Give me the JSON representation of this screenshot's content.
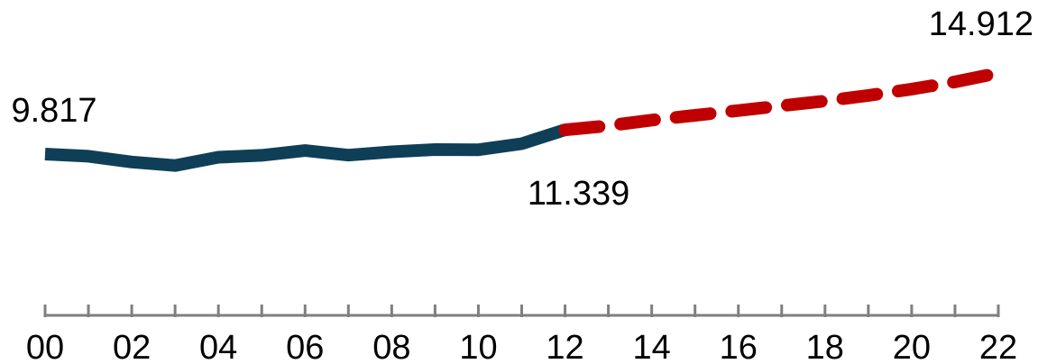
{
  "chart_data": {
    "type": "line",
    "title": "",
    "xlabel": "",
    "ylabel": "",
    "x": [
      0,
      1,
      2,
      3,
      4,
      5,
      6,
      7,
      8,
      9,
      10,
      11,
      12,
      13,
      14,
      15,
      16,
      17,
      18,
      19,
      20,
      21,
      22
    ],
    "xlim": [
      0,
      22
    ],
    "ylim": [
      6,
      16
    ],
    "x_tick_labels": [
      "00",
      "02",
      "04",
      "06",
      "08",
      "10",
      "12",
      "14",
      "16",
      "18",
      "20",
      "22"
    ],
    "grid": false,
    "legend": "none",
    "series": [
      {
        "style": "solid",
        "color": "#0f3f57",
        "x": [
          0,
          1,
          2,
          3,
          4,
          5,
          6,
          7,
          8,
          9,
          10,
          11,
          12
        ],
        "values": [
          9.817,
          9.68,
          9.32,
          9.1,
          9.62,
          9.74,
          10.04,
          9.75,
          9.96,
          10.1,
          10.09,
          10.47,
          11.339
        ]
      },
      {
        "style": "dashed",
        "color": "#c00000",
        "x": [
          12,
          13,
          14,
          15,
          16,
          17,
          18,
          19,
          20,
          21,
          22
        ],
        "values": [
          11.339,
          11.6,
          11.95,
          12.25,
          12.55,
          12.85,
          13.15,
          13.5,
          13.9,
          14.35,
          14.912
        ]
      }
    ],
    "data_labels": [
      {
        "text": "9.817",
        "x": 0,
        "y": 9.817
      },
      {
        "text": "11.339",
        "x": 12,
        "y": 11.339
      },
      {
        "text": "14.912",
        "x": 22,
        "y": 14.912
      }
    ]
  }
}
